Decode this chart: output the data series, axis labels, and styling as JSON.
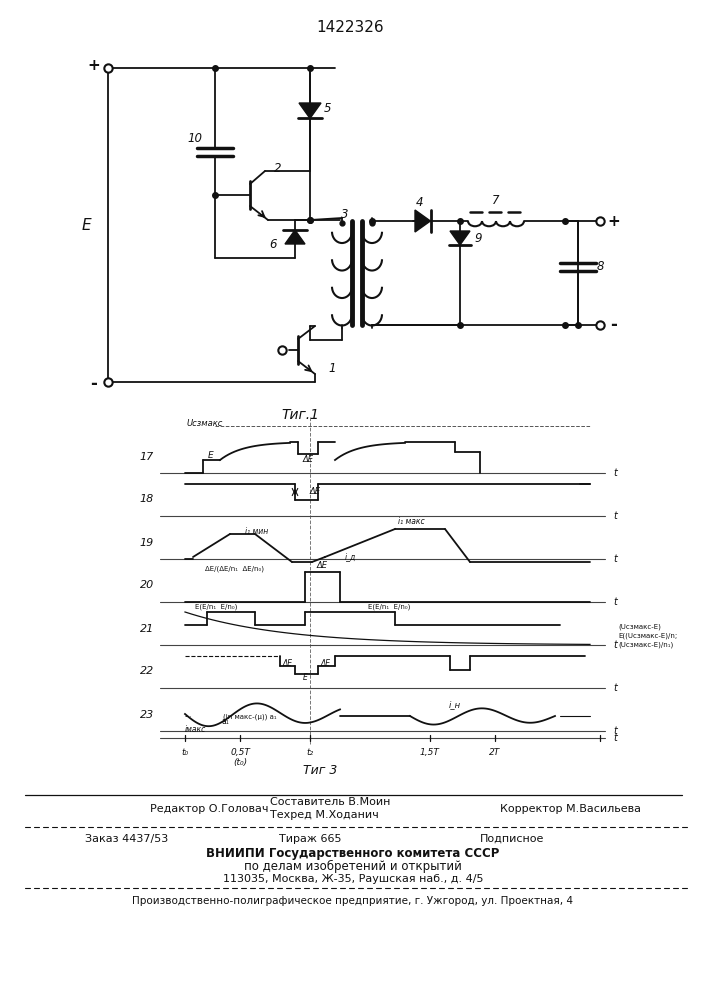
{
  "patent_number": "1422326",
  "fig1_caption": "Τиг.1",
  "fig3_caption": "Τиг 3",
  "lc": "#111111",
  "editor_line": "Редактор О.Головач",
  "composer_line": "Составитель В.Моин",
  "techred_line": "Техред М.Ходанич",
  "corrector_line": "Корректор М.Васильева",
  "order_line": "Заказ 4437/53",
  "tirage_line": "Тираж 665",
  "podpisnoe_line": "Подписное",
  "vniishi_line": "ВНИИПИ Государственного комитета СССР",
  "po_delam_line": "по делам изобретений и открытий",
  "address_line": "113035, Москва, Ж-35, Раушская наб., д. 4/5",
  "factory_line": "Производственно-полиграфическое предприятие, г. Ужгород, ул. Проектная, 4"
}
